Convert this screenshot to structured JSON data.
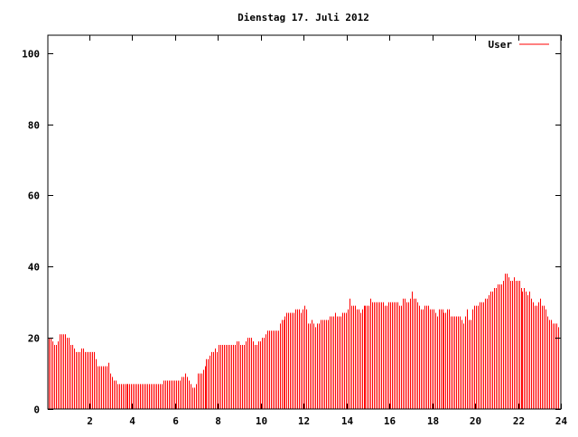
{
  "chart_data": {
    "type": "bar",
    "style": "impulses",
    "title": "Dienstag 17. Juli 2012",
    "xlabel": "",
    "ylabel": "",
    "xlim": [
      0,
      24
    ],
    "ylim": [
      0,
      105
    ],
    "x_ticks": [
      "2",
      "4",
      "6",
      "8",
      "10",
      "12",
      "14",
      "16",
      "18",
      "20",
      "22",
      "24"
    ],
    "y_ticks": [
      "0",
      "20",
      "40",
      "60",
      "80",
      "100"
    ],
    "legend_placement": "top-right",
    "color": "#ff0000",
    "x_step_hours": 0.0833,
    "series": [
      {
        "name": "User",
        "values": [
          20,
          20,
          20,
          19,
          18,
          18,
          19,
          21,
          21,
          21,
          21,
          20,
          20,
          18,
          18,
          17,
          16,
          16,
          16,
          17,
          17,
          16,
          16,
          16,
          16,
          16,
          16,
          14,
          12,
          12,
          12,
          12,
          12,
          12,
          13,
          10,
          9,
          8,
          8,
          7,
          7,
          7,
          7,
          7,
          7,
          7,
          7,
          7,
          7,
          7,
          7,
          7,
          7,
          7,
          7,
          7,
          7,
          7,
          7,
          7,
          7,
          7,
          7,
          7,
          7,
          8,
          8,
          8,
          8,
          8,
          8,
          8,
          8,
          8,
          8,
          9,
          9,
          10,
          9,
          8,
          7,
          6,
          6,
          7,
          10,
          10,
          10,
          11,
          12,
          14,
          14,
          15,
          16,
          16,
          17,
          16,
          18,
          18,
          18,
          18,
          18,
          18,
          18,
          18,
          18,
          18,
          19,
          19,
          18,
          18,
          18,
          19,
          20,
          20,
          20,
          19,
          18,
          18,
          19,
          19,
          20,
          20,
          21,
          22,
          22,
          22,
          22,
          22,
          22,
          22,
          24,
          25,
          25,
          26,
          27,
          27,
          27,
          27,
          27,
          28,
          28,
          28,
          27,
          28,
          29,
          28,
          24,
          24,
          25,
          24,
          23,
          24,
          24,
          25,
          25,
          25,
          25,
          25,
          26,
          26,
          26,
          27,
          26,
          26,
          26,
          27,
          27,
          27,
          28,
          31,
          29,
          29,
          29,
          28,
          28,
          27,
          28,
          29,
          29,
          29,
          29,
          31,
          30,
          30,
          30,
          30,
          30,
          30,
          30,
          29,
          29,
          30,
          30,
          30,
          30,
          30,
          30,
          29,
          29,
          31,
          31,
          30,
          30,
          31,
          33,
          31,
          31,
          30,
          29,
          28,
          28,
          29,
          29,
          29,
          28,
          28,
          28,
          27,
          26,
          28,
          28,
          28,
          27,
          27,
          28,
          28,
          26,
          26,
          26,
          26,
          26,
          26,
          25,
          24,
          26,
          28,
          25,
          25,
          28,
          29,
          29,
          29,
          30,
          30,
          30,
          31,
          31,
          32,
          33,
          33,
          34,
          34,
          35,
          35,
          35,
          36,
          38,
          38,
          37,
          36,
          36,
          37,
          36,
          36,
          36,
          34,
          33,
          34,
          33,
          32,
          33,
          31,
          30,
          29,
          29,
          30,
          31,
          29,
          29,
          28,
          26,
          25,
          25,
          24,
          24,
          24,
          23,
          23
        ]
      }
    ]
  }
}
